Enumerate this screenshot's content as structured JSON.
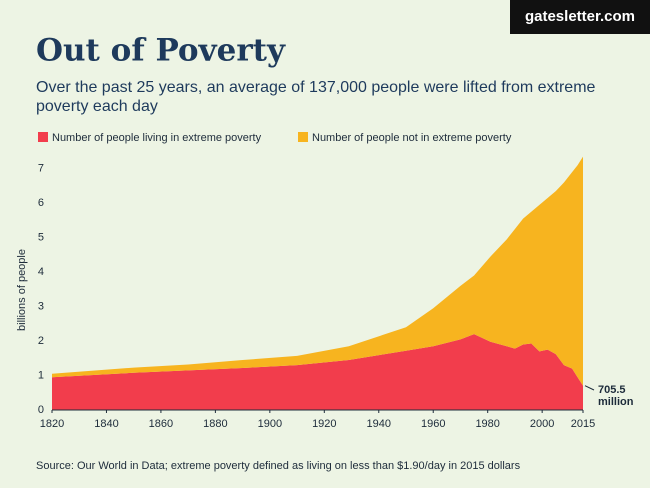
{
  "badge": "gatesletter.com",
  "chart_data": {
    "type": "stacked_area",
    "title": "Out of Poverty",
    "subtitle": "Over the past 25 years, an average of 137,000 people were lifted from extreme poverty each day",
    "y_label": "billions of people",
    "source": "Source: Our World in Data; extreme poverty defined as living on less than $1.90/day in 2015 dollars",
    "annotation_lines": [
      "705.5",
      "million"
    ],
    "x": [
      1820,
      1850,
      1870,
      1890,
      1910,
      1929,
      1950,
      1960,
      1970,
      1975,
      1981,
      1987,
      1990,
      1993,
      1996,
      1999,
      2002,
      2005,
      2008,
      2011,
      2013,
      2015
    ],
    "series": [
      {
        "name": "Number of people living in extreme poverty",
        "color": "#f23d4c",
        "values": [
          0.95,
          1.08,
          1.15,
          1.22,
          1.3,
          1.45,
          1.72,
          1.85,
          2.05,
          2.2,
          1.98,
          1.85,
          1.78,
          1.9,
          1.93,
          1.7,
          1.75,
          1.62,
          1.3,
          1.2,
          0.95,
          0.7055
        ]
      },
      {
        "name": "Number of people not in extreme poverty",
        "color": "#f7b41f",
        "values": [
          0.1,
          0.15,
          0.17,
          0.23,
          0.27,
          0.4,
          0.68,
          1.1,
          1.55,
          1.7,
          2.47,
          3.1,
          3.47,
          3.65,
          3.82,
          4.25,
          4.4,
          4.73,
          5.3,
          5.7,
          6.15,
          6.6445
        ]
      }
    ],
    "xlim": [
      1820,
      2015
    ],
    "xticks": [
      1820,
      1840,
      1860,
      1880,
      1900,
      1920,
      1940,
      1960,
      1980,
      2000,
      2015
    ],
    "ylim": [
      0,
      7.6
    ],
    "yticks": [
      0,
      1,
      2,
      3,
      4,
      5,
      6,
      7
    ]
  }
}
